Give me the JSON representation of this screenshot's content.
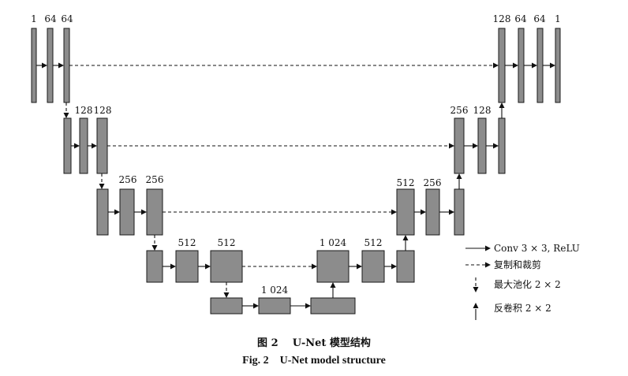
{
  "diagram": {
    "labels": {
      "l1": "1",
      "l2": "64",
      "l3": "64",
      "l4": "128",
      "l5": "128",
      "l6": "256",
      "l7": "256",
      "l8": "512",
      "l9": "512",
      "l10": "1 024",
      "l11": "1 024",
      "l12": "512",
      "l13": "512",
      "l14": "256",
      "l15": "256",
      "l16": "128",
      "l17": "128",
      "l18": "64",
      "l19": "64",
      "l20": "1"
    },
    "legend": {
      "conv": "Conv 3 × 3, ReLU",
      "copy": "复制和裁剪",
      "pool": "最大池化 2 × 2",
      "upconv": "反卷积 2 × 2"
    }
  },
  "caption": {
    "zh_number": "图 2",
    "zh_title": "U-Net 模型结构",
    "en_number": "Fig. 2",
    "en_title": "U-Net model structure"
  }
}
